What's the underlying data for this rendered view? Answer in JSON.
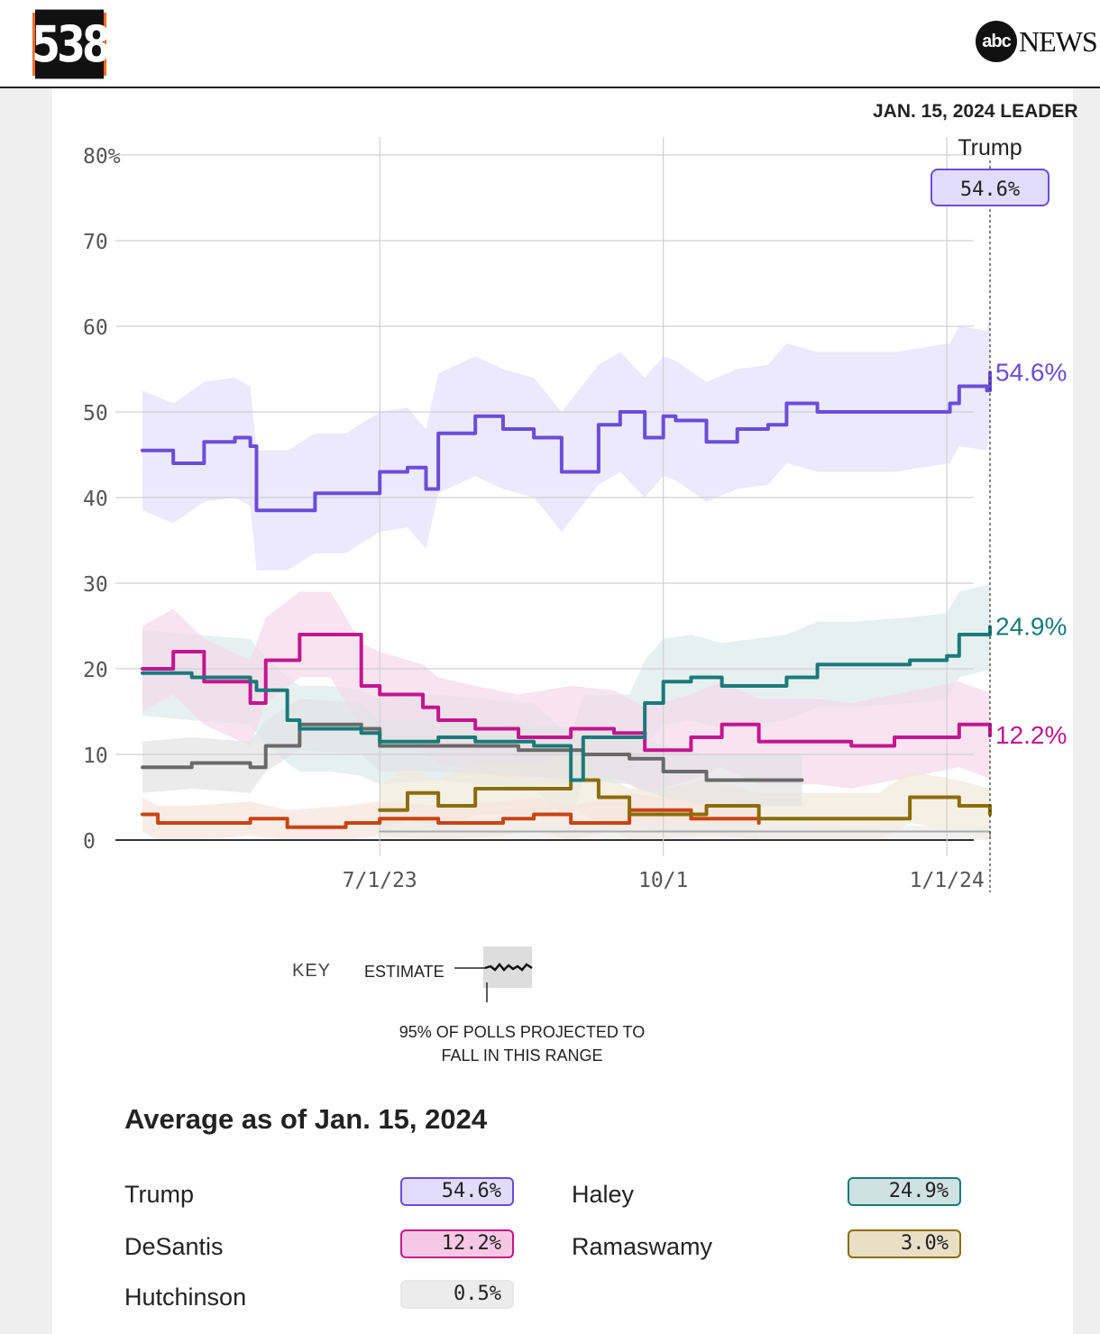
{
  "header": {
    "logo_text": "538",
    "network_logo_text": "abc",
    "network_name": "NEWS"
  },
  "leader_heading": "JAN. 15, 2024 LEADER",
  "leader": {
    "name": "Trump",
    "value": "54.6%"
  },
  "key": {
    "label": "KEY",
    "estimate": "ESTIMATE",
    "note_line1": "95% OF POLLS PROJECTED TO",
    "note_line2": "FALL IN THIS RANGE"
  },
  "average": {
    "title": "Average as of Jan. 15, 2024",
    "rows": [
      {
        "name": "Trump",
        "value": "54.6%",
        "color": "#6a4ed8",
        "fill": "#e2dcfb"
      },
      {
        "name": "Haley",
        "value": "24.9%",
        "color": "#1a7a7a",
        "fill": "#cfe1e2"
      },
      {
        "name": "DeSantis",
        "value": "12.2%",
        "color": "#c2168f",
        "fill": "#f6c8e4"
      },
      {
        "name": "Ramaswamy",
        "value": "3.0%",
        "color": "#8a6d0a",
        "fill": "#e9dfc6"
      },
      {
        "name": "Hutchinson",
        "value": "0.5%",
        "color": "#e8e8e8",
        "fill": "#ececec"
      }
    ]
  },
  "chart_data": {
    "type": "line",
    "ylim": [
      0,
      80
    ],
    "y_ticks": [
      "80%",
      "70",
      "60",
      "50",
      "40",
      "30",
      "20",
      "10",
      "0"
    ],
    "x_ticks": [
      "7/1/23",
      "10/1",
      "1/1/24"
    ],
    "end_labels": [
      "54.6%",
      "24.9%",
      "12.2%"
    ],
    "grid": true,
    "series": [
      {
        "name": "Trump",
        "color": "#6a4ed8",
        "band": "#e4dffb",
        "x": [
          "2023-04-15",
          "2023-04-25",
          "2023-05-05",
          "2023-05-15",
          "2023-05-20",
          "2023-05-22",
          "2023-06-01",
          "2023-06-10",
          "2023-06-20",
          "2023-07-01",
          "2023-07-10",
          "2023-07-16",
          "2023-07-20",
          "2023-08-01",
          "2023-08-10",
          "2023-08-20",
          "2023-08-29",
          "2023-09-10",
          "2023-09-17",
          "2023-09-25",
          "2023-10-01",
          "2023-10-05",
          "2023-10-15",
          "2023-10-25",
          "2023-11-04",
          "2023-11-10",
          "2023-11-20",
          "2023-12-01",
          "2023-12-15",
          "2024-01-02",
          "2024-01-05",
          "2024-01-14",
          "2024-01-15"
        ],
        "y": [
          45.5,
          44,
          46.5,
          47,
          46,
          38.5,
          38.5,
          40.5,
          40.5,
          43,
          43.5,
          41,
          47.5,
          49.5,
          48,
          47,
          43,
          48.5,
          50,
          47,
          49.5,
          49,
          46.5,
          48,
          48.5,
          51,
          50,
          50,
          50,
          51,
          53,
          52.5,
          54.6
        ]
      },
      {
        "name": "Haley",
        "color": "#1a7a7a",
        "band": "#dbe9ea",
        "x": [
          "2023-04-15",
          "2023-05-01",
          "2023-05-20",
          "2023-05-22",
          "2023-06-01",
          "2023-06-05",
          "2023-06-15",
          "2023-06-25",
          "2023-07-01",
          "2023-07-20",
          "2023-08-01",
          "2023-08-20",
          "2023-09-01",
          "2023-09-05",
          "2023-09-10",
          "2023-09-20",
          "2023-09-25",
          "2023-10-01",
          "2023-10-10",
          "2023-10-20",
          "2023-11-10",
          "2023-11-20",
          "2023-12-01",
          "2023-12-20",
          "2024-01-01",
          "2024-01-05",
          "2024-01-15"
        ],
        "y": [
          19.5,
          19,
          18.5,
          17.5,
          14,
          13,
          13,
          12.5,
          11.5,
          12,
          11.5,
          11,
          7,
          12,
          12,
          12,
          16,
          18.5,
          19,
          18,
          19,
          20.5,
          20.5,
          21,
          21.5,
          24,
          24.9
        ]
      },
      {
        "name": "DeSantis",
        "color": "#c2168f",
        "band": "#f3d9ea",
        "x": [
          "2023-04-15",
          "2023-04-25",
          "2023-05-05",
          "2023-05-20",
          "2023-05-25",
          "2023-06-05",
          "2023-06-15",
          "2023-06-25",
          "2023-07-01",
          "2023-07-15",
          "2023-07-20",
          "2023-08-01",
          "2023-08-15",
          "2023-09-01",
          "2023-09-15",
          "2023-09-25",
          "2023-10-10",
          "2023-10-20",
          "2023-11-01",
          "2023-11-20",
          "2023-12-01",
          "2023-12-15",
          "2024-01-05",
          "2024-01-15"
        ],
        "y": [
          20,
          22,
          18.5,
          16,
          21,
          24,
          24,
          18,
          17,
          15.5,
          14,
          13,
          12,
          13,
          12.5,
          10.5,
          12,
          13.5,
          11.5,
          11.5,
          11,
          12,
          13.5,
          12.2
        ]
      },
      {
        "name": "Ramaswamy",
        "color": "#8a6d0a",
        "band": "#f1e9d8",
        "x": [
          "2023-07-01",
          "2023-07-10",
          "2023-07-20",
          "2023-08-01",
          "2023-08-20",
          "2023-09-01",
          "2023-09-10",
          "2023-09-20",
          "2023-10-01",
          "2023-10-15",
          "2023-11-01",
          "2023-11-20",
          "2023-12-10",
          "2023-12-20",
          "2024-01-05",
          "2024-01-15"
        ],
        "y": [
          3.5,
          5.5,
          4,
          6,
          6,
          7,
          5,
          3,
          3,
          4,
          2.5,
          2.5,
          2.5,
          5,
          4,
          3.0
        ]
      },
      {
        "name": "",
        "color": "#6a6a6a",
        "band": "#e2e2e2",
        "x": [
          "2023-04-15",
          "2023-05-01",
          "2023-05-20",
          "2023-05-25",
          "2023-06-05",
          "2023-06-25",
          "2023-07-01",
          "2023-07-20",
          "2023-08-15",
          "2023-09-05",
          "2023-09-20",
          "2023-10-01",
          "2023-10-15",
          "2023-11-01",
          "2023-11-15"
        ],
        "y": [
          8.5,
          9,
          8.5,
          11,
          13.5,
          13,
          11,
          11,
          10.5,
          10,
          9.5,
          8,
          7,
          7,
          7
        ]
      },
      {
        "name": "",
        "color": "#c84414",
        "band": "#f6e4dc",
        "x": [
          "2023-04-15",
          "2023-04-20",
          "2023-05-01",
          "2023-05-20",
          "2023-06-01",
          "2023-06-20",
          "2023-07-01",
          "2023-07-20",
          "2023-08-10",
          "2023-08-20",
          "2023-09-01",
          "2023-09-20",
          "2023-10-10",
          "2023-10-20",
          "2023-11-01"
        ],
        "y": [
          3,
          2,
          2,
          2.5,
          1.5,
          2,
          2.5,
          2,
          2.5,
          3,
          2,
          3.5,
          2.5,
          2.5,
          2
        ]
      },
      {
        "name": "Hutchinson",
        "color": "#aaaaaa",
        "band": "#ececec",
        "x": [
          "2023-07-01",
          "2023-09-01",
          "2023-11-01",
          "2024-01-15"
        ],
        "y": [
          1,
          1,
          1,
          0.5
        ]
      }
    ]
  }
}
